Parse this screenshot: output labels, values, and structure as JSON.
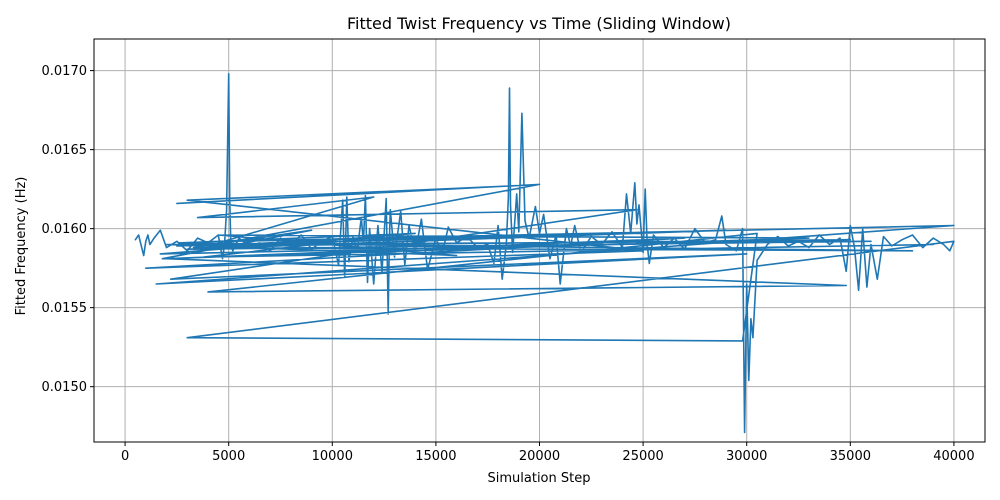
{
  "chart_data": {
    "type": "line",
    "title": "Fitted Twist Frequency vs Time (Sliding Window)",
    "xlabel": "Simulation Step",
    "ylabel": "Fitted Frequency (Hz)",
    "xlim": [
      -1500,
      41500
    ],
    "ylim": [
      0.01465,
      0.0172
    ],
    "xticks": [
      0,
      5000,
      10000,
      15000,
      20000,
      25000,
      30000,
      35000,
      40000
    ],
    "xtick_labels": [
      "0",
      "5000",
      "10000",
      "15000",
      "20000",
      "25000",
      "30000",
      "35000",
      "40000"
    ],
    "yticks": [
      0.015,
      0.0155,
      0.016,
      0.0165,
      0.017
    ],
    "ytick_labels": [
      "0.0150",
      "0.0155",
      "0.0160",
      "0.0165",
      "0.0170"
    ],
    "grid": true,
    "series": [
      {
        "color": "#1f77b4",
        "x": [
          500,
          650,
          800,
          900,
          1000,
          1100,
          1200,
          1400,
          1700,
          2000,
          2500,
          3000,
          3500,
          4000,
          4500,
          4700,
          4800,
          4900,
          5000,
          5050,
          5100,
          5200,
          5500,
          6000,
          6500,
          7000,
          7500,
          8000,
          8500,
          9000,
          9500,
          10000,
          10300,
          10500,
          10600,
          10700,
          10800,
          11000,
          11200,
          11400,
          11500,
          11600,
          11700,
          11800,
          12000,
          12200,
          12400,
          12600,
          12700,
          12750,
          12800,
          13000,
          13300,
          13500,
          13700,
          14000,
          14300,
          14600,
          15000,
          15300,
          15600,
          16000,
          16500,
          17000,
          17500,
          17800,
          18000,
          18200,
          18400,
          18500,
          18550,
          18600,
          18700,
          18900,
          19000,
          19150,
          19300,
          19500,
          19800,
          20000,
          20200,
          20500,
          20800,
          21000,
          21300,
          21500,
          21700,
          22000,
          22500,
          23000,
          23500,
          24000,
          24200,
          24400,
          24600,
          24700,
          24800,
          25000,
          25100,
          25200,
          25300,
          25500,
          26000,
          26500,
          27000,
          27500,
          28000,
          28500,
          28800,
          29000,
          29500,
          29800,
          29900,
          30000,
          30100,
          30200,
          30300,
          30500,
          31000,
          31500,
          32000,
          32500,
          33000,
          33500,
          34000,
          34500,
          34800,
          35000,
          35200,
          35400,
          35600,
          35800,
          36000,
          36300,
          36600,
          37000,
          37500,
          38000,
          38500,
          39000,
          39500,
          39800,
          40000,
          3000,
          29800,
          30500,
          4000,
          34800,
          2000,
          27000,
          1000,
          25000,
          3000,
          18500,
          2500,
          20000,
          4000,
          12000,
          3500,
          24700,
          2200,
          30000,
          1500,
          40000,
          5000,
          22000,
          2500,
          29000,
          3000,
          36000,
          2000,
          16000,
          4500,
          33000,
          1800,
          9000,
          3300,
          38000,
          2600,
          14000,
          1700,
          35000,
          4200,
          12500,
          3800,
          39000
        ],
        "y": [
          0.01593,
          0.01596,
          0.01588,
          0.01583,
          0.01592,
          0.01596,
          0.0159,
          0.01594,
          0.01599,
          0.01588,
          0.01592,
          0.01586,
          0.01594,
          0.01591,
          0.01596,
          0.01581,
          0.0159,
          0.01612,
          0.01698,
          0.0162,
          0.0159,
          0.01586,
          0.01594,
          0.01589,
          0.01591,
          0.01586,
          0.01594,
          0.0159,
          0.01596,
          0.01587,
          0.01592,
          0.01595,
          0.01577,
          0.01618,
          0.01569,
          0.0162,
          0.01579,
          0.01595,
          0.01586,
          0.01607,
          0.01591,
          0.01621,
          0.01566,
          0.016,
          0.01565,
          0.01602,
          0.01573,
          0.01619,
          0.01546,
          0.0159,
          0.01612,
          0.01582,
          0.01611,
          0.01577,
          0.01602,
          0.01585,
          0.01606,
          0.01574,
          0.01594,
          0.01584,
          0.01601,
          0.01591,
          0.01595,
          0.01588,
          0.0159,
          0.01578,
          0.01602,
          0.01568,
          0.0159,
          0.0162,
          0.01689,
          0.01615,
          0.01585,
          0.01622,
          0.01598,
          0.01673,
          0.01605,
          0.01594,
          0.01614,
          0.01597,
          0.01609,
          0.01581,
          0.01596,
          0.01565,
          0.016,
          0.01589,
          0.01602,
          0.01585,
          0.01595,
          0.0159,
          0.01598,
          0.01588,
          0.01622,
          0.01597,
          0.01629,
          0.01603,
          0.01615,
          0.01585,
          0.01625,
          0.0159,
          0.01578,
          0.01596,
          0.01588,
          0.01594,
          0.01587,
          0.016,
          0.01591,
          0.01593,
          0.01608,
          0.0159,
          0.01586,
          0.016,
          0.01471,
          0.01565,
          0.01504,
          0.01543,
          0.01531,
          0.0158,
          0.0159,
          0.01595,
          0.01589,
          0.01592,
          0.01588,
          0.01596,
          0.0159,
          0.01594,
          0.01573,
          0.01602,
          0.01588,
          0.01561,
          0.016,
          0.01563,
          0.0159,
          0.01568,
          0.01595,
          0.01589,
          0.01593,
          0.01596,
          0.01588,
          0.01594,
          0.0159,
          0.01586,
          0.01592,
          0.01531,
          0.01529,
          0.01597,
          0.0156,
          0.01564,
          0.01581,
          0.01594,
          0.01575,
          0.01586,
          0.01618,
          0.01627,
          0.01616,
          0.01628,
          0.01589,
          0.0162,
          0.01607,
          0.01612,
          0.01568,
          0.01584,
          0.01565,
          0.01602,
          0.01592,
          0.01596,
          0.01589,
          0.01599,
          0.01587,
          0.01592,
          0.0159,
          0.01583,
          0.01596,
          0.01594,
          0.01581,
          0.01599,
          0.01588,
          0.01586,
          0.01591,
          0.01597,
          0.01584,
          0.01593,
          0.01589,
          0.01595,
          0.01582,
          0.0159
        ]
      }
    ]
  }
}
